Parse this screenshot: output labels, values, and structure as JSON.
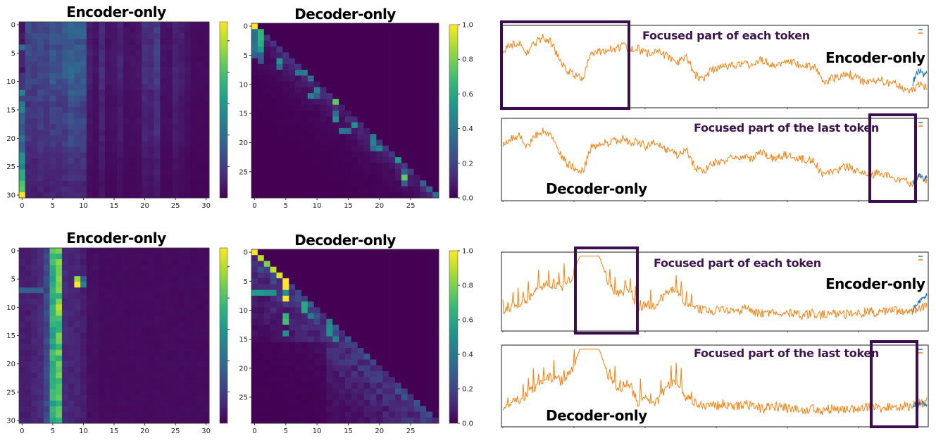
{
  "colors": {
    "highlight_box": "#3b0f4f",
    "annotation_text": "#3f1650",
    "series_orange": "#ff7f0e",
    "series_blue": "#1f77b4",
    "colormap": "viridis"
  },
  "chart_data": [
    {
      "id": "hm1",
      "type": "heatmap",
      "title": "Encoder-only",
      "rows": 31,
      "cols": 31,
      "x_ticks": [
        0,
        5,
        10,
        15,
        20,
        25,
        30
      ],
      "y_ticks": [
        0,
        5,
        10,
        15,
        20,
        25,
        30
      ],
      "colorbar_labels": [],
      "column_profile": [
        0,
        0.22,
        0.2,
        0.24,
        0.2,
        0.27,
        0.25,
        0.26,
        0.32,
        0.3,
        0.28,
        0.08,
        0.05,
        0.13,
        0.05,
        0.06,
        0.1,
        0.05,
        0.05,
        0.06,
        0.14,
        0.12,
        0.18,
        0.05,
        0.05,
        0.1,
        0.08,
        0.05,
        0.03,
        0.03,
        0.03
      ],
      "row_profile": [
        1,
        1,
        1,
        0.9,
        0.95,
        1,
        1,
        1,
        1,
        1,
        1,
        0.9,
        0.85,
        0.8,
        0.7,
        0.7,
        0.75,
        0.75,
        0.7,
        0.7,
        0.7,
        0.65,
        0.6,
        0.5,
        0.5,
        0.5,
        0.45,
        0.45,
        0.4,
        0.4,
        0.4
      ],
      "column0": [
        0.05,
        0.05,
        0.08,
        0.05,
        0.35,
        0.1,
        0.1,
        0.1,
        0.05,
        0.15,
        0.15,
        0.15,
        0.45,
        0.2,
        0.42,
        0.45,
        0.3,
        0.3,
        0.25,
        0.28,
        0.38,
        0.3,
        0.32,
        0.5,
        0.52,
        0.45,
        0.62,
        0.62,
        0.72,
        0.75,
        1.0
      ]
    },
    {
      "id": "hm2",
      "type": "heatmap",
      "title": "Decoder-only",
      "rows": 30,
      "cols": 30,
      "x_ticks": [
        0,
        5,
        10,
        15,
        20,
        25
      ],
      "y_ticks": [
        0,
        5,
        10,
        15,
        20,
        25
      ],
      "colorbar_labels": [
        "0.0",
        "0.2",
        "0.4",
        "0.6",
        "0.8",
        "1.0"
      ],
      "band_value": 0.12,
      "band_width": 3,
      "cells": [
        [
          0,
          0,
          1.0
        ],
        [
          1,
          1,
          0.65
        ],
        [
          2,
          1,
          0.65
        ],
        [
          3,
          1,
          0.62
        ],
        [
          4,
          1,
          0.55
        ],
        [
          1,
          0,
          0.35
        ],
        [
          2,
          0,
          0.35
        ],
        [
          3,
          0,
          0.38
        ],
        [
          4,
          0,
          0.38
        ],
        [
          5,
          0,
          0.3
        ],
        [
          5,
          1,
          0.3
        ],
        [
          6,
          1,
          0.25
        ],
        [
          6,
          4,
          0.5
        ],
        [
          7,
          4,
          0.35
        ],
        [
          8,
          7,
          0.4
        ],
        [
          8,
          8,
          0.42
        ],
        [
          9,
          9,
          0.35
        ],
        [
          11,
          10,
          0.45
        ],
        [
          12,
          9,
          0.45
        ],
        [
          12,
          10,
          0.3
        ],
        [
          13,
          13,
          0.75
        ],
        [
          15,
          13,
          0.35
        ],
        [
          16,
          13,
          0.5
        ],
        [
          17,
          16,
          0.5
        ],
        [
          18,
          14,
          0.4
        ],
        [
          18,
          15,
          0.35
        ],
        [
          19,
          19,
          0.4
        ],
        [
          20,
          19,
          0.45
        ],
        [
          21,
          20,
          0.45
        ],
        [
          21,
          19,
          0.35
        ],
        [
          23,
          23,
          0.55
        ],
        [
          25,
          24,
          0.3
        ],
        [
          26,
          24,
          0.75
        ],
        [
          27,
          24,
          0.3
        ],
        [
          27,
          27,
          0.3
        ],
        [
          28,
          28,
          0.3
        ],
        [
          29,
          29,
          0.35
        ]
      ]
    },
    {
      "id": "hm3",
      "type": "heatmap",
      "title": "Encoder-only",
      "rows": 31,
      "cols": 31,
      "x_ticks": [
        0,
        5,
        10,
        15,
        20,
        25,
        30
      ],
      "y_ticks": [
        0,
        5,
        10,
        15,
        20,
        25,
        30
      ],
      "colorbar_labels": [],
      "column_profile": [
        0.08,
        0.08,
        0.1,
        0.12,
        0.22,
        0.62,
        0.72,
        0.12,
        0.1,
        0.1,
        0.08,
        0.04,
        0.04,
        0.03,
        0.03,
        0.03,
        0.03,
        0.03,
        0.03,
        0.03,
        0.03,
        0.03,
        0.03,
        0.03,
        0.03,
        0.03,
        0.03,
        0.03,
        0.03,
        0.03,
        0.03
      ],
      "row_profile": [
        1,
        1,
        1,
        1,
        1,
        1,
        1,
        1,
        1,
        1,
        1,
        1,
        1,
        1,
        1,
        1,
        1,
        1,
        1,
        1,
        1,
        1,
        1,
        1,
        1,
        1,
        1,
        1,
        1,
        1,
        1
      ],
      "cells": [
        [
          5,
          9,
          0.85
        ],
        [
          6,
          9,
          1.0
        ],
        [
          6,
          10,
          0.45
        ],
        [
          5,
          10,
          0.3
        ],
        [
          10,
          6,
          0.9
        ],
        [
          11,
          6,
          0.85
        ],
        [
          0,
          5,
          0.75
        ],
        [
          0,
          6,
          0.8
        ],
        [
          7,
          0,
          0.3
        ],
        [
          7,
          1,
          0.3
        ],
        [
          7,
          2,
          0.3
        ],
        [
          7,
          3,
          0.3
        ]
      ]
    },
    {
      "id": "hm4",
      "type": "heatmap",
      "title": "Decoder-only",
      "rows": 30,
      "cols": 30,
      "x_ticks": [
        0,
        5,
        10,
        15,
        20,
        25
      ],
      "y_ticks": [
        0,
        5,
        10,
        15,
        20,
        25
      ],
      "colorbar_labels": [
        "0.0",
        "0.2",
        "0.4",
        "0.6",
        "0.8",
        "1.0"
      ],
      "band_value": 0.2,
      "band_width": 8,
      "cells": [
        [
          0,
          0,
          1.0
        ],
        [
          1,
          1,
          0.9
        ],
        [
          2,
          2,
          0.8
        ],
        [
          3,
          3,
          0.9
        ],
        [
          4,
          4,
          0.95
        ],
        [
          4,
          5,
          0
        ],
        [
          5,
          5,
          1.0
        ],
        [
          6,
          5,
          1.0
        ],
        [
          7,
          0,
          0.55
        ],
        [
          7,
          1,
          0.55
        ],
        [
          7,
          2,
          0.5
        ],
        [
          7,
          3,
          0.5
        ],
        [
          7,
          5,
          0.5
        ],
        [
          8,
          5,
          1.0
        ],
        [
          9,
          8,
          0.6
        ],
        [
          10,
          8,
          0.6
        ],
        [
          11,
          5,
          0.65
        ],
        [
          12,
          5,
          0.7
        ],
        [
          12,
          12,
          0.45
        ],
        [
          13,
          12,
          0.5
        ],
        [
          14,
          5,
          0.5
        ],
        [
          14,
          12,
          0.5
        ],
        [
          15,
          13,
          0.45
        ],
        [
          11,
          9,
          0.4
        ]
      ]
    },
    {
      "id": "ln1",
      "type": "line",
      "annotation": "Focused part of each token",
      "model_label": "Encoder-only",
      "highlight_range": [
        0,
        0.3
      ],
      "series": [
        {
          "color": "#ff7f0e",
          "values": [
            0.7,
            0.75,
            0.8,
            0.65,
            0.78,
            0.85,
            0.8,
            0.6,
            0.45,
            0.4,
            0.35,
            0.65,
            0.68,
            0.7,
            0.72,
            0.75,
            0.7,
            0.72,
            0.65,
            0.7,
            0.65,
            0.6,
            0.55,
            0.62,
            0.4,
            0.35,
            0.45,
            0.48,
            0.5,
            0.52,
            0.55,
            0.5,
            0.58,
            0.55,
            0.5,
            0.55,
            0.55,
            0.52,
            0.5,
            0.48,
            0.3,
            0.35,
            0.38,
            0.42,
            0.38,
            0.32,
            0.3,
            0.35,
            0.3,
            0.28,
            0.25,
            0.2,
            0.28,
            0.25
          ]
        },
        {
          "color": "#1f77b4",
          "values_tail": [
            0.3,
            0.42,
            0.45,
            0.4,
            0.45
          ]
        }
      ]
    },
    {
      "id": "ln2",
      "type": "line",
      "annotation": "Focused part of the last token",
      "model_label": "Decoder-only",
      "highlight_range": [
        0.865,
        0.97
      ],
      "series": [
        {
          "color": "#ff7f0e",
          "values": [
            0.7,
            0.75,
            0.8,
            0.65,
            0.78,
            0.85,
            0.8,
            0.6,
            0.45,
            0.4,
            0.35,
            0.65,
            0.68,
            0.7,
            0.72,
            0.75,
            0.7,
            0.72,
            0.65,
            0.7,
            0.65,
            0.6,
            0.55,
            0.62,
            0.4,
            0.35,
            0.45,
            0.48,
            0.5,
            0.52,
            0.55,
            0.5,
            0.58,
            0.55,
            0.5,
            0.55,
            0.55,
            0.52,
            0.5,
            0.48,
            0.3,
            0.35,
            0.38,
            0.42,
            0.38,
            0.32,
            0.3,
            0.35,
            0.3,
            0.28,
            0.25,
            0.2,
            0.28,
            0.25
          ]
        },
        {
          "color": "#1f77b4",
          "values_tail": [
            0.22,
            0.28,
            0.3,
            0.27,
            0.28
          ]
        }
      ]
    },
    {
      "id": "ln3",
      "type": "line",
      "annotation": "Focused part of each token",
      "model_label": "Encoder-only",
      "highlight_range": [
        0.17,
        0.32
      ],
      "series": [
        {
          "color": "#ff7f0e",
          "values": [
            0.25,
            0.3,
            0.35,
            0.45,
            0.55,
            0.6,
            0.55,
            0.65,
            0.95,
            0.95,
            0.95,
            0.6,
            0.45,
            0.55,
            0.3,
            0.35,
            0.3,
            0.5,
            0.55,
            0.35,
            0.3,
            0.25,
            0.25,
            0.28,
            0.25,
            0.28,
            0.25,
            0.22,
            0.25,
            0.24,
            0.22,
            0.2,
            0.22,
            0.2,
            0.22,
            0.2,
            0.22,
            0.22,
            0.25,
            0.22,
            0.25,
            0.25,
            0.25,
            0.28,
            0.3
          ]
        },
        {
          "color": "#1f77b4",
          "values_tail": [
            0.25,
            0.35,
            0.4,
            0.45
          ]
        }
      ]
    },
    {
      "id": "ln4",
      "type": "line",
      "annotation": "Focused part of the last token",
      "model_label": "Decoder-only",
      "highlight_range": [
        0.87,
        0.97
      ],
      "series": [
        {
          "color": "#ff7f0e",
          "values": [
            0.25,
            0.3,
            0.35,
            0.45,
            0.55,
            0.6,
            0.55,
            0.65,
            0.95,
            0.95,
            0.95,
            0.6,
            0.45,
            0.55,
            0.3,
            0.35,
            0.3,
            0.5,
            0.55,
            0.35,
            0.3,
            0.25,
            0.25,
            0.28,
            0.25,
            0.28,
            0.25,
            0.22,
            0.25,
            0.24,
            0.22,
            0.2,
            0.22,
            0.2,
            0.22,
            0.2,
            0.22,
            0.22,
            0.25,
            0.22,
            0.25,
            0.25,
            0.25,
            0.28,
            0.3
          ]
        },
        {
          "color": "#1f77b4",
          "values_tail": [
            0.25,
            0.28,
            0.3,
            0.27
          ]
        }
      ]
    }
  ]
}
